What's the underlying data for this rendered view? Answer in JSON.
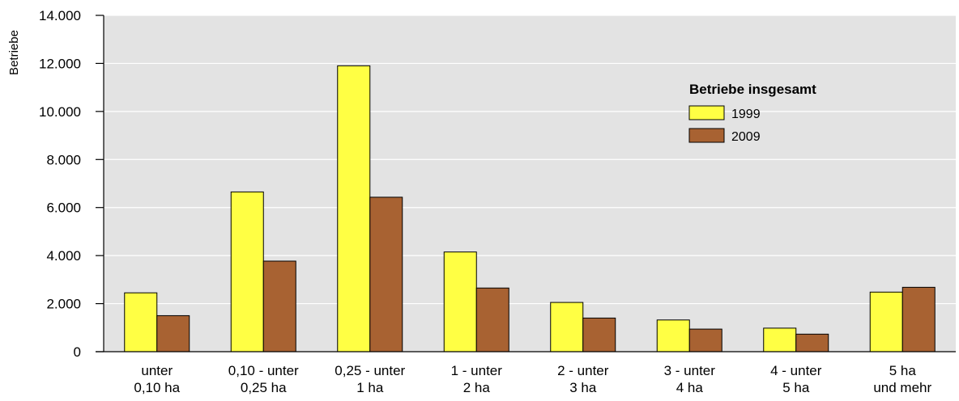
{
  "chart_data": {
    "type": "bar",
    "ylabel": "Betriebe",
    "ylim": [
      0,
      14000
    ],
    "yticks": [
      0,
      2000,
      4000,
      6000,
      8000,
      10000,
      12000,
      14000
    ],
    "ytick_labels": [
      "0",
      "2.000",
      "4.000",
      "6.000",
      "8.000",
      "10.000",
      "12.000",
      "14.000"
    ],
    "categories": [
      [
        "unter",
        "0,10 ha"
      ],
      [
        "0,10 - unter",
        "0,25 ha"
      ],
      [
        "0,25 - unter",
        "1 ha"
      ],
      [
        "1 - unter",
        "2 ha"
      ],
      [
        "2 - unter",
        "3 ha"
      ],
      [
        "3 - unter",
        "4 ha"
      ],
      [
        "4 - unter",
        "5 ha"
      ],
      [
        "5 ha",
        "und mehr"
      ]
    ],
    "legend_title": "Betriebe insgesamt",
    "legend_position": "top-right",
    "grid": true,
    "series": [
      {
        "name": "1999",
        "color": "#ffff44",
        "values": [
          2450,
          6650,
          11900,
          4150,
          2050,
          1320,
          980,
          2480
        ]
      },
      {
        "name": "2009",
        "color": "#a86232",
        "values": [
          1500,
          3770,
          6430,
          2650,
          1400,
          940,
          730,
          2680
        ]
      }
    ]
  }
}
